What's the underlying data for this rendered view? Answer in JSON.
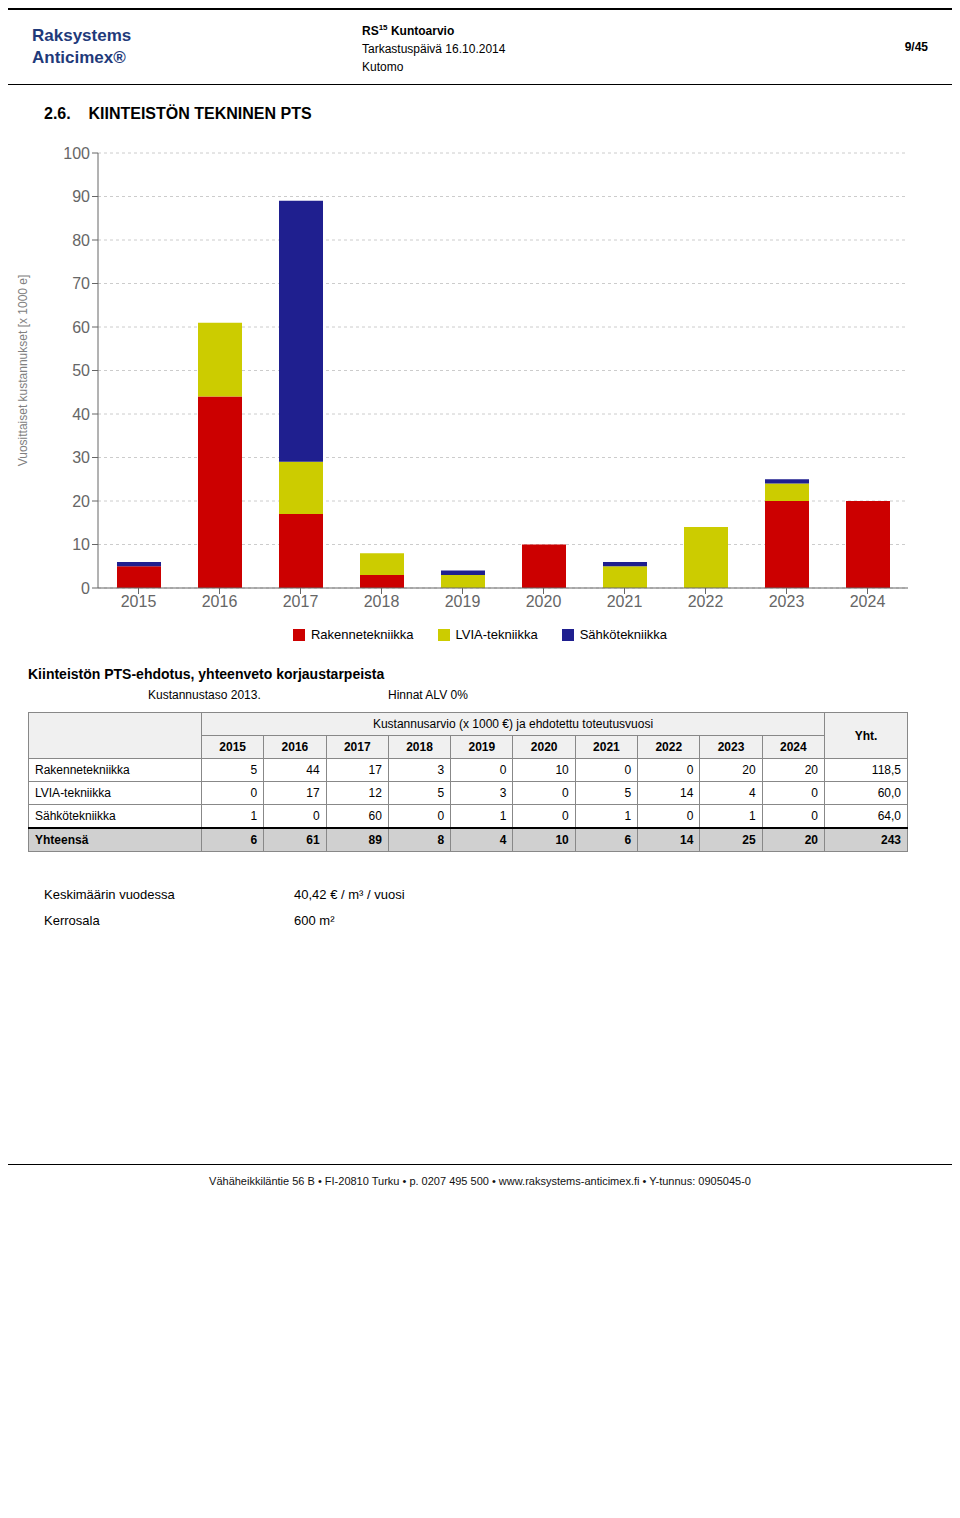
{
  "chart_data": {
    "type": "bar",
    "title": "2.6.    KIINTEISTÖN TEKNINEN PTS",
    "categories": [
      "2015",
      "2016",
      "2017",
      "2018",
      "2019",
      "2020",
      "2021",
      "2022",
      "2023",
      "2024"
    ],
    "series": [
      {
        "name": "Rakennetekniikka",
        "color": "#CC0000",
        "values": [
          5,
          44,
          17,
          3,
          0,
          10,
          0,
          0,
          20,
          20
        ]
      },
      {
        "name": "LVIA-tekniikka",
        "color": "#CCCC00",
        "values": [
          0,
          17,
          12,
          5,
          3,
          0,
          5,
          14,
          4,
          0
        ]
      },
      {
        "name": "Sähkötekniikka",
        "color": "#1F1F8F",
        "values": [
          1,
          0,
          60,
          0,
          1,
          0,
          1,
          0,
          1,
          0
        ]
      }
    ],
    "ylabel": "Vuosittaiset kustannukset [x 1000 e]",
    "ylim": [
      0,
      100
    ],
    "yticks": [
      0,
      10,
      20,
      30,
      40,
      50,
      60,
      70,
      80,
      90,
      100
    ],
    "grid": true,
    "stacked": true,
    "legend": "bottom",
    "annotations": [
      "Raksystems",
      "Anticimex®",
      "RS",
      "15",
      " Kuntoarvio",
      "Tarkastuspäivä 16.10.2014",
      "Kutomo",
      "9/45",
      "Keskimäärin vuodessa",
      "40,42 € / m³ / vuosi",
      "Kerrosala",
      "600 m²",
      "Vähäheikkiläntie 56 B  •  FI-20810 Turku  •  p. 0207 495 500  •  www.raksystems-anticimex.fi  •  Y-tunnus: 0905045-0"
    ],
    "table": {
      "title": "Kiinteistön PTS-ehdotus, yhteenveto korjaustarpeista",
      "subtitles": [
        "Kustannustaso 2013.",
        "Hinnat ALV 0%"
      ],
      "header": "Kustannusarvio (x 1000 €) ja ehdotettu toteutusvuosi",
      "total_column": "Yht.",
      "columns": [
        "2015",
        "2016",
        "2017",
        "2018",
        "2019",
        "2020",
        "2021",
        "2022",
        "2023",
        "2024"
      ],
      "rows": [
        [
          "Rakennetekniikka",
          "5",
          "44",
          "17",
          "3",
          "0",
          "10",
          "0",
          "0",
          "20",
          "20",
          "118,5"
        ],
        [
          "LVIA-tekniikka",
          "0",
          "17",
          "12",
          "5",
          "3",
          "0",
          "5",
          "14",
          "4",
          "0",
          "60,0"
        ],
        [
          "Sähkötekniikka",
          "1",
          "0",
          "60",
          "0",
          "1",
          "0",
          "1",
          "0",
          "1",
          "0",
          "64,0"
        ]
      ],
      "total_row": [
        "Yhteensä",
        "6",
        "61",
        "89",
        "8",
        "4",
        "10",
        "6",
        "14",
        "25",
        "20",
        "243"
      ]
    }
  }
}
